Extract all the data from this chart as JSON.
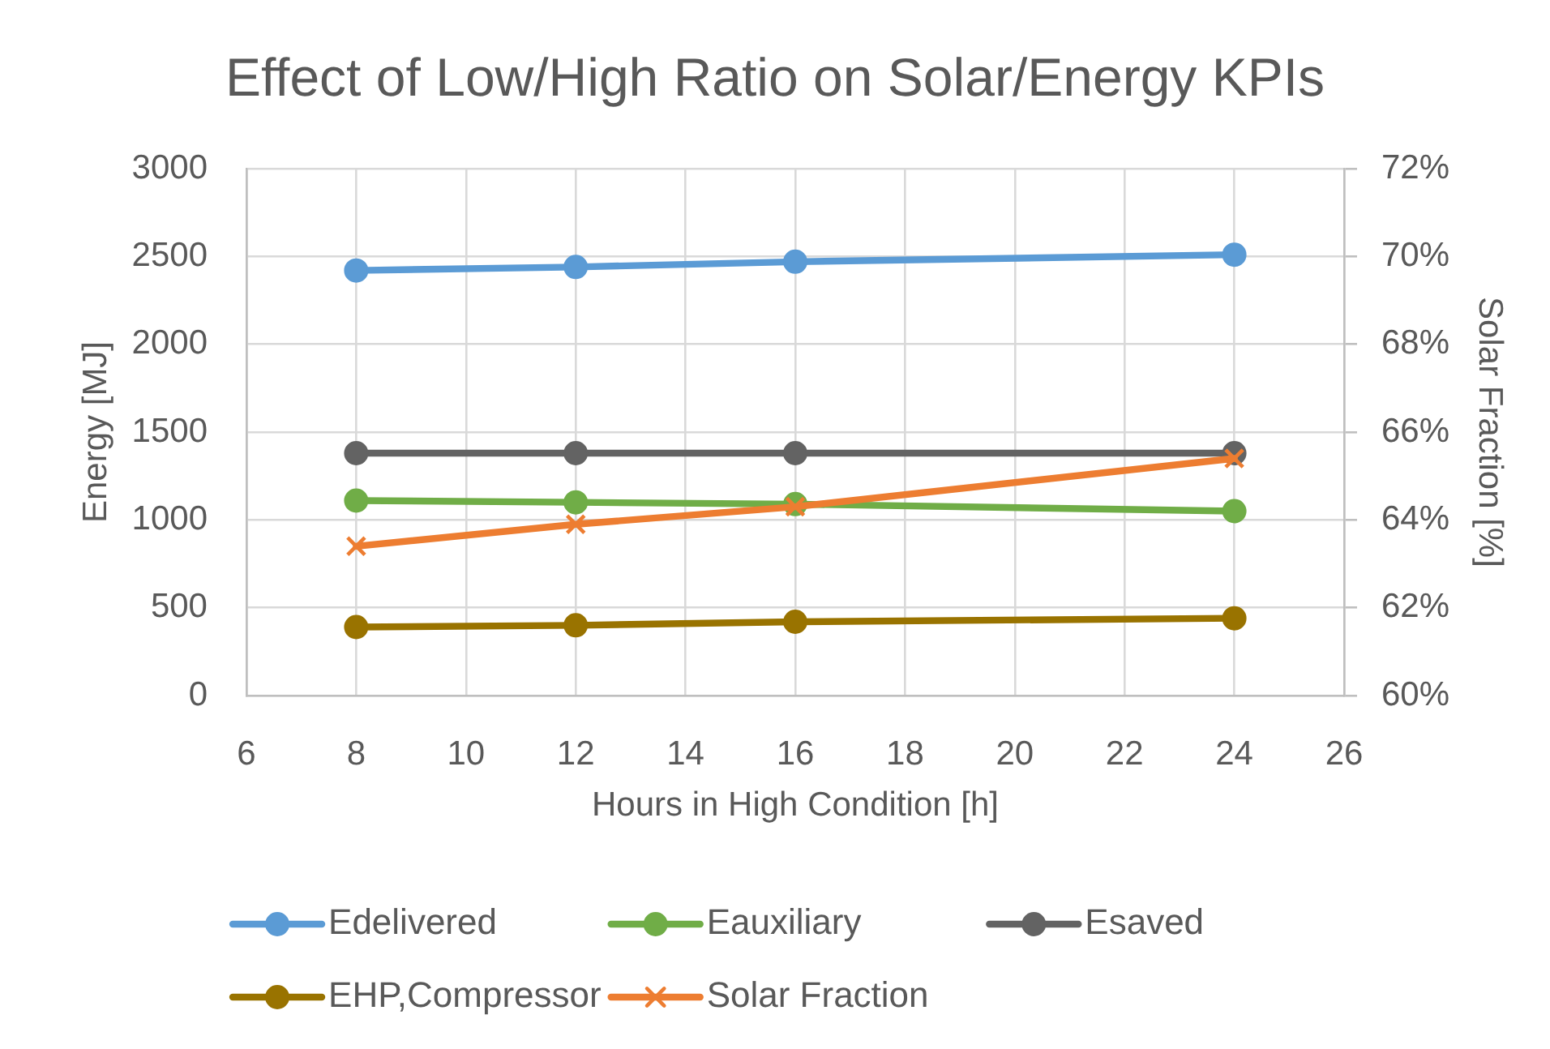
{
  "chart_data": {
    "type": "line",
    "title": "Effect of Low/High Ratio on Solar/Energy KPIs",
    "xlabel": "Hours in High Condition [h]",
    "ylabel": "Energy [MJ]",
    "y2label": "Solar Fraction [%]",
    "x": [
      8,
      12,
      16,
      24
    ],
    "series": [
      {
        "name": "Edelivered",
        "color": "#5b9bd5",
        "values": [
          2420,
          2440,
          2470,
          2510
        ]
      },
      {
        "name": "Eauxiliary",
        "color": "#70ad47",
        "values": [
          1110,
          1100,
          1090,
          1050
        ]
      },
      {
        "name": "Esaved",
        "color": "#636363",
        "values": [
          1380,
          1380,
          1380,
          1380
        ]
      },
      {
        "name": "EHP,Compressor",
        "color": "#997300",
        "values": [
          390,
          400,
          420,
          440
        ]
      },
      {
        "name": "Solar Fraction",
        "color": "#ed7d31",
        "values": [
          63.4,
          63.9,
          64.3,
          65.4
        ],
        "marker": "cross",
        "axis": "y2"
      }
    ],
    "xlim": [
      6,
      26
    ],
    "xticks": [
      6,
      8,
      10,
      12,
      14,
      16,
      18,
      20,
      22,
      24,
      26
    ],
    "ylim": [
      0,
      3000
    ],
    "yticks": [
      0,
      500,
      1000,
      1500,
      2000,
      2500,
      3000
    ],
    "y2lim": [
      60,
      72
    ],
    "y2ticks": [
      {
        "value": 60,
        "label": "60%"
      },
      {
        "value": 62,
        "label": "62%"
      },
      {
        "value": 64,
        "label": "64%"
      },
      {
        "value": 66,
        "label": "66%"
      },
      {
        "value": 68,
        "label": "68%"
      },
      {
        "value": 70,
        "label": "70%"
      },
      {
        "value": 72,
        "label": "72%"
      }
    ],
    "grid": true,
    "legend": "bottom",
    "marker": "circle",
    "line_style": "solid"
  }
}
